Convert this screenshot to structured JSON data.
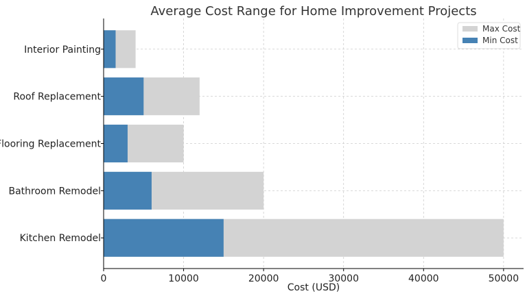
{
  "chart_data": {
    "type": "bar",
    "orientation": "horizontal",
    "stacked": false,
    "title": "Average Cost Range for Home Improvement Projects",
    "xlabel": "Cost (USD)",
    "ylabel": "",
    "categories": [
      "Kitchen Remodel",
      "Bathroom Remodel",
      "Flooring Replacement",
      "Roof Replacement",
      "Interior Painting"
    ],
    "series": [
      {
        "name": "Max Cost",
        "values": [
          50000,
          20000,
          10000,
          12000,
          4000
        ],
        "color": "#d3d3d3"
      },
      {
        "name": "Min Cost",
        "values": [
          15000,
          6000,
          3000,
          5000,
          1500
        ],
        "color": "#4682b4"
      }
    ],
    "xlim": [
      0,
      52500
    ],
    "xticks": [
      0,
      10000,
      20000,
      30000,
      40000,
      50000
    ],
    "grid": true,
    "legend_position": "top-right"
  }
}
